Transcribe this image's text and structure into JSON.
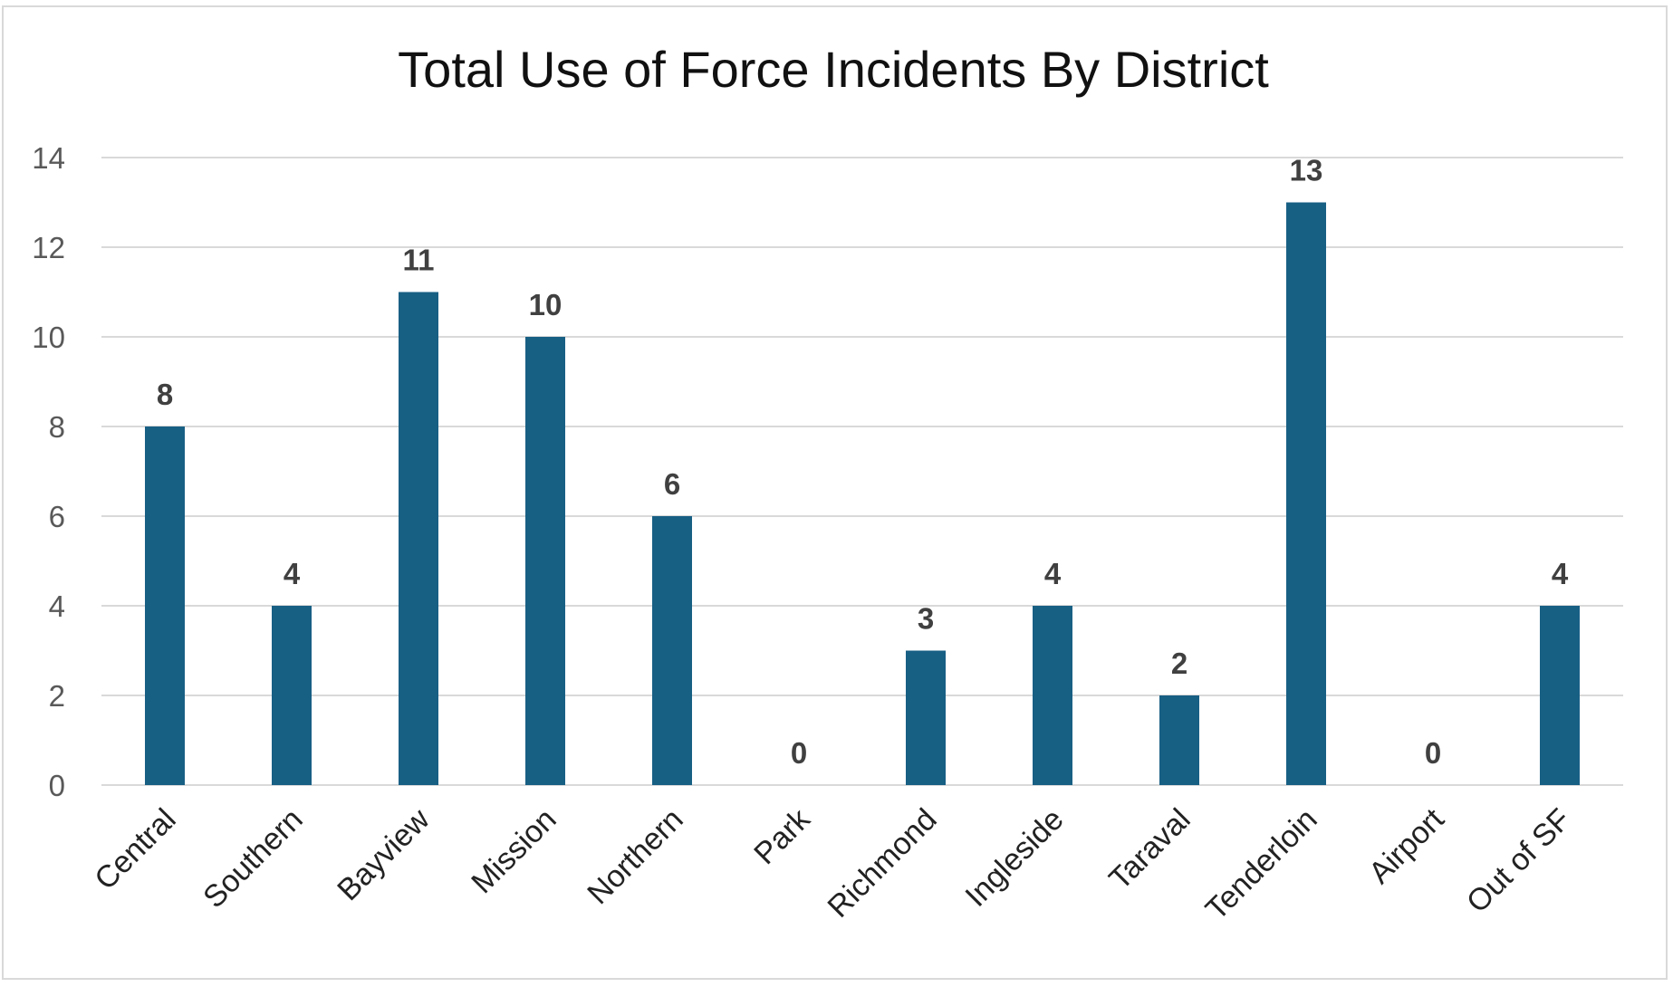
{
  "chart_data": {
    "type": "bar",
    "title": "Total Use of Force Incidents By District",
    "xlabel": "",
    "ylabel": "",
    "categories": [
      "Central",
      "Southern",
      "Bayview",
      "Mission",
      "Northern",
      "Park",
      "Richmond",
      "Ingleside",
      "Taraval",
      "Tenderloin",
      "Airport",
      "Out of SF"
    ],
    "values": [
      8,
      4,
      11,
      10,
      6,
      0,
      3,
      4,
      2,
      13,
      0,
      4
    ],
    "ylim": [
      0,
      14
    ],
    "yticks": [
      0,
      2,
      4,
      6,
      8,
      10,
      12,
      14
    ],
    "grid": true,
    "legend": "none",
    "colors": {
      "bar": "#185f84",
      "grid": "#d9d9d9",
      "data_label": "#404040",
      "axis_text": "#595959"
    }
  }
}
